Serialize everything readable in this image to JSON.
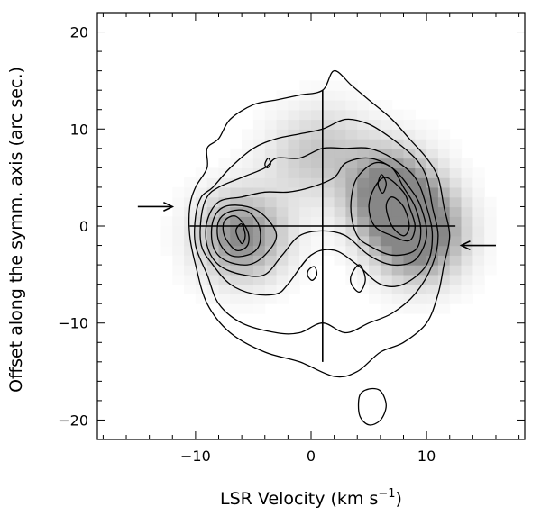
{
  "chart_data": {
    "type": "heatmap",
    "subtype": "position-velocity contour map (greyscale + contours)",
    "title": "",
    "xlabel": "LSR Velocity (km s",
    "xlabel_superscript": "−1",
    "xlabel_close": ")",
    "ylabel": "Offset along the symm. axis (arc sec.)",
    "xlim": [
      -18.5,
      18.5
    ],
    "ylim": [
      -22,
      22
    ],
    "x_ticks": [
      -10,
      0,
      10
    ],
    "x_tick_labels": [
      "−10",
      "0",
      "10"
    ],
    "y_ticks": [
      -20,
      -10,
      0,
      10,
      20
    ],
    "y_tick_labels": [
      "−20",
      "−10",
      "0",
      "10",
      "20"
    ],
    "x_minor_step": 2,
    "y_minor_step": 2,
    "grid": false,
    "colormap": "white-to-grey",
    "contour_color": "#000000",
    "intensity_peaks": [
      {
        "x": -6.0,
        "y": -1.0,
        "value": 1.0
      },
      {
        "x": 6.5,
        "y": 4.0,
        "value": 0.95
      },
      {
        "x": 8.5,
        "y": 1.0,
        "value": 0.95
      },
      {
        "x": 9.5,
        "y": -1.5,
        "value": 0.85
      },
      {
        "x": -1.0,
        "y": 6.5,
        "value": 0.25
      },
      {
        "x": 1.5,
        "y": 8.5,
        "value": 0.3
      }
    ],
    "contours": [
      {
        "level": 1,
        "points": [
          [
            -10.5,
            2
          ],
          [
            -10.5,
            -1
          ],
          [
            -10,
            -4
          ],
          [
            -9,
            -8
          ],
          [
            -7,
            -11
          ],
          [
            -4,
            -13
          ],
          [
            -1,
            -14
          ],
          [
            2,
            -15.5
          ],
          [
            4,
            -15
          ],
          [
            6,
            -13
          ],
          [
            8,
            -12
          ],
          [
            10,
            -10
          ],
          [
            11,
            -7
          ],
          [
            11.5,
            -4
          ],
          [
            12,
            -1
          ],
          [
            11.5,
            2
          ],
          [
            11,
            5
          ],
          [
            10,
            7
          ],
          [
            8.5,
            9
          ],
          [
            7,
            11
          ],
          [
            5,
            13
          ],
          [
            3.5,
            14.5
          ],
          [
            2,
            16
          ],
          [
            1,
            14
          ],
          [
            -1,
            13.5
          ],
          [
            -3,
            13
          ],
          [
            -5,
            12.5
          ],
          [
            -7,
            11
          ],
          [
            -8,
            9
          ],
          [
            -9,
            8
          ],
          [
            -9,
            6
          ],
          [
            -10,
            4
          ]
        ]
      },
      {
        "level": 2,
        "points": [
          [
            -10,
            1
          ],
          [
            -10,
            -2
          ],
          [
            -9,
            -5
          ],
          [
            -8,
            -8
          ],
          [
            -6,
            -10
          ],
          [
            -3,
            -11
          ],
          [
            -1,
            -11
          ],
          [
            1,
            -10
          ],
          [
            3,
            -11
          ],
          [
            5,
            -10
          ],
          [
            7,
            -9
          ],
          [
            9,
            -7
          ],
          [
            10.5,
            -4
          ],
          [
            11,
            -1
          ],
          [
            10.5,
            2
          ],
          [
            10,
            5
          ],
          [
            9,
            7
          ],
          [
            7,
            9
          ],
          [
            5,
            10.5
          ],
          [
            3,
            11
          ],
          [
            1,
            10
          ],
          [
            -1,
            9.5
          ],
          [
            -3,
            9
          ],
          [
            -5,
            8
          ],
          [
            -7,
            6
          ],
          [
            -8.5,
            4
          ],
          [
            -9.5,
            3
          ]
        ]
      },
      {
        "level": 3,
        "points": [
          [
            -9.5,
            1
          ],
          [
            -9.5,
            -2
          ],
          [
            -8.5,
            -4
          ],
          [
            -7,
            -6
          ],
          [
            -5,
            -7
          ],
          [
            -3,
            -7
          ],
          [
            -2,
            -6
          ],
          [
            0,
            -3
          ],
          [
            2,
            -2.5
          ],
          [
            4,
            -4
          ],
          [
            6,
            -6
          ],
          [
            8,
            -6
          ],
          [
            10,
            -4
          ],
          [
            10.5,
            -1
          ],
          [
            10,
            2
          ],
          [
            9,
            5
          ],
          [
            7,
            7
          ],
          [
            5,
            8
          ],
          [
            3,
            8
          ],
          [
            1,
            8
          ],
          [
            -1,
            7
          ],
          [
            -3,
            7
          ],
          [
            -4,
            6
          ],
          [
            -6,
            5
          ],
          [
            -8,
            4
          ],
          [
            -9,
            3
          ]
        ]
      },
      {
        "level": 4,
        "points": [
          [
            -9,
            0.5
          ],
          [
            -9,
            -2
          ],
          [
            -8,
            -4
          ],
          [
            -6,
            -5
          ],
          [
            -4,
            -5
          ],
          [
            -2.5,
            -3
          ],
          [
            -1,
            -1
          ],
          [
            1,
            -0.5
          ],
          [
            3,
            -1
          ],
          [
            5,
            -3
          ],
          [
            7,
            -4
          ],
          [
            9,
            -3.5
          ],
          [
            10,
            -1
          ],
          [
            9.5,
            2
          ],
          [
            8.5,
            4
          ],
          [
            7,
            6
          ],
          [
            5,
            7
          ],
          [
            3,
            6.5
          ],
          [
            2,
            5
          ],
          [
            0,
            4
          ],
          [
            -2,
            3.5
          ],
          [
            -4,
            3.5
          ],
          [
            -6,
            3
          ],
          [
            -8,
            2.5
          ]
        ]
      },
      {
        "level": 5,
        "points": [
          [
            -8.5,
            0.5
          ],
          [
            -8.5,
            -2
          ],
          [
            -7.5,
            -3.5
          ],
          [
            -5.5,
            -4
          ],
          [
            -4,
            -3
          ],
          [
            -3,
            -1
          ],
          [
            -4,
            1
          ],
          [
            -5.5,
            2
          ],
          [
            -7.5,
            2
          ]
        ]
      },
      {
        "level": 5,
        "points": [
          [
            3.5,
            1
          ],
          [
            4,
            -1
          ],
          [
            5,
            -2
          ],
          [
            7,
            -3
          ],
          [
            9,
            -2.5
          ],
          [
            9.5,
            -0.5
          ],
          [
            9,
            2
          ],
          [
            8,
            4
          ],
          [
            7,
            6
          ],
          [
            5.5,
            6.5
          ],
          [
            4,
            5
          ],
          [
            3.5,
            3
          ]
        ]
      },
      {
        "level": 6,
        "points": [
          [
            -8,
            0.5
          ],
          [
            -8,
            -1.5
          ],
          [
            -7,
            -3
          ],
          [
            -5.5,
            -3
          ],
          [
            -4.5,
            -2
          ],
          [
            -4.5,
            0
          ],
          [
            -5.5,
            1.5
          ],
          [
            -7,
            1.5
          ]
        ]
      },
      {
        "level": 6,
        "points": [
          [
            5,
            2
          ],
          [
            5.5,
            0
          ],
          [
            7,
            -1
          ],
          [
            8.5,
            -1.5
          ],
          [
            9,
            0
          ],
          [
            8.5,
            2
          ],
          [
            8,
            3.5
          ],
          [
            6.5,
            5
          ],
          [
            5.5,
            4
          ]
        ]
      },
      {
        "level": 7,
        "points": [
          [
            -7.5,
            0.5
          ],
          [
            -7.5,
            -1
          ],
          [
            -6.5,
            -2.5
          ],
          [
            -5.5,
            -2
          ],
          [
            -5.5,
            -0.5
          ],
          [
            -6.5,
            1
          ]
        ]
      },
      {
        "level": 7,
        "points": [
          [
            6.5,
            2
          ],
          [
            7,
            0
          ],
          [
            8,
            -1
          ],
          [
            8.5,
            0
          ],
          [
            8,
            2
          ],
          [
            7,
            3
          ]
        ]
      },
      {
        "level": 8,
        "points": [
          [
            -6.5,
            -0.5
          ],
          [
            -6,
            -1.8
          ],
          [
            -5.7,
            -1
          ],
          [
            -6,
            0.2
          ]
        ]
      },
      {
        "level": 8,
        "points": [
          [
            5.8,
            4.3
          ],
          [
            6.2,
            3.4
          ],
          [
            6.5,
            4.4
          ],
          [
            6.1,
            5.3
          ]
        ]
      },
      {
        "level": 2,
        "points": [
          [
            3.5,
            -5
          ],
          [
            4.2,
            -4
          ],
          [
            4.7,
            -5.5
          ],
          [
            4.2,
            -6.8
          ],
          [
            3.5,
            -6
          ]
        ]
      },
      {
        "level": 2,
        "points": [
          [
            -0.2,
            -4.5
          ],
          [
            0.3,
            -4.2
          ],
          [
            0.5,
            -5
          ],
          [
            0.1,
            -5.6
          ],
          [
            -0.3,
            -5.1
          ]
        ]
      },
      {
        "level": 1,
        "points": [
          [
            4.2,
            -17.5
          ],
          [
            5,
            -16.8
          ],
          [
            6,
            -17
          ],
          [
            6.5,
            -18.5
          ],
          [
            6,
            -20
          ],
          [
            5,
            -20.5
          ],
          [
            4.2,
            -19.5
          ]
        ]
      },
      {
        "level": 4,
        "points": [
          [
            -4,
            6.4
          ],
          [
            -3.7,
            7
          ],
          [
            -3.5,
            6.4
          ],
          [
            -3.8,
            6
          ]
        ]
      }
    ],
    "reference_lines": [
      {
        "x1": -10.5,
        "y1": 0,
        "x2": 12.5,
        "y2": 0
      },
      {
        "x1": 1,
        "y1": -14,
        "x2": 1,
        "y2": 14
      }
    ],
    "arrows": [
      {
        "from": [
          -15,
          2
        ],
        "to": [
          -12,
          2
        ]
      },
      {
        "from": [
          16,
          -2
        ],
        "to": [
          13,
          -2
        ]
      }
    ]
  }
}
